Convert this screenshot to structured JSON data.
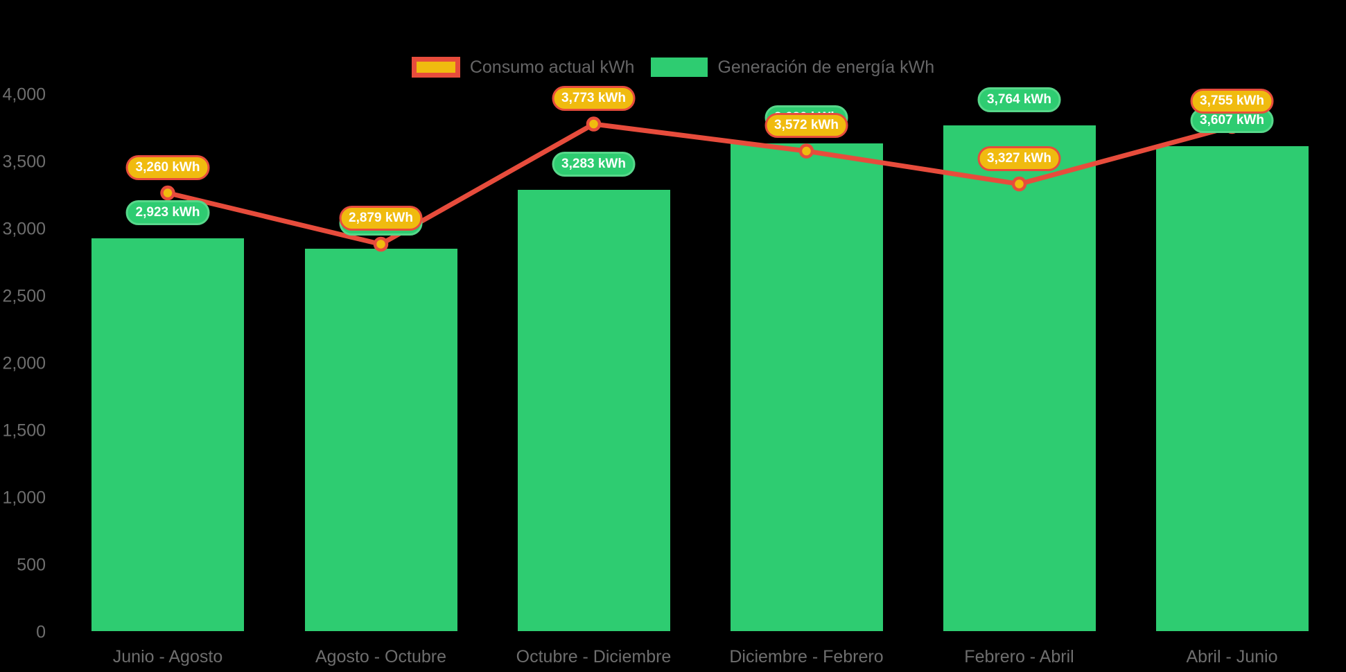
{
  "chart": {
    "background": "#000000",
    "legend": {
      "items": [
        {
          "label": "Consumo actual kWh",
          "swatch_fill": "#f0bb0f",
          "swatch_border": "#e74c3c"
        },
        {
          "label": "Generación de energía kWh",
          "swatch_fill": "#2ecc71",
          "swatch_border": "#2ecc71"
        }
      ]
    },
    "text_color_axis": "#6e6e6e",
    "text_color_legend": "#666667"
  },
  "chart_data": {
    "type": "bar",
    "subtype": "combo bar + line",
    "categories": [
      "Junio - Agosto",
      "Agosto - Octubre",
      "Octubre - Diciembre",
      "Diciembre - Febrero",
      "Febrero - Abril",
      "Abril - Junio"
    ],
    "series": [
      {
        "name": "Generación de energía kWh",
        "type": "bar",
        "color": "#2ecc71",
        "values": [
          2923,
          2845,
          3283,
          3630,
          3764,
          3607
        ],
        "data_labels": [
          "2,923 kWh",
          "2,845 kWh",
          "3,283 kWh",
          "3,630 kWh",
          "3,764 kWh",
          "3,607 kWh"
        ],
        "label_partially_hidden_behind_consumo_label": [
          false,
          true,
          false,
          true,
          false,
          false
        ],
        "label_fill": "#2ecc71",
        "label_border": "#57d78a",
        "label_text_color": "#ffffff"
      },
      {
        "name": "Consumo actual kWh",
        "type": "line",
        "color": "#e74c3c",
        "marker_fill": "#f0bb0f",
        "marker_stroke": "#e74c3c",
        "values": [
          3260,
          2879,
          3773,
          3572,
          3327,
          3755
        ],
        "data_labels": [
          "3,260 kWh",
          "2,879 kWh",
          "3,773 kWh",
          "3,572 kWh",
          "3,327 kWh",
          "3,755 kWh"
        ],
        "label_fill": "#f0bb0f",
        "label_border": "#e74c3c",
        "label_text_color": "#ffffff"
      }
    ],
    "ylim": [
      0,
      4000
    ],
    "ytick_step": 500,
    "ytick_labels": [
      "0",
      "500",
      "1,000",
      "1,500",
      "2,000",
      "2,500",
      "3,000",
      "3,500",
      "4,000"
    ],
    "grid": false,
    "axis_lines": false,
    "legend_position": "top-center",
    "title": ""
  }
}
